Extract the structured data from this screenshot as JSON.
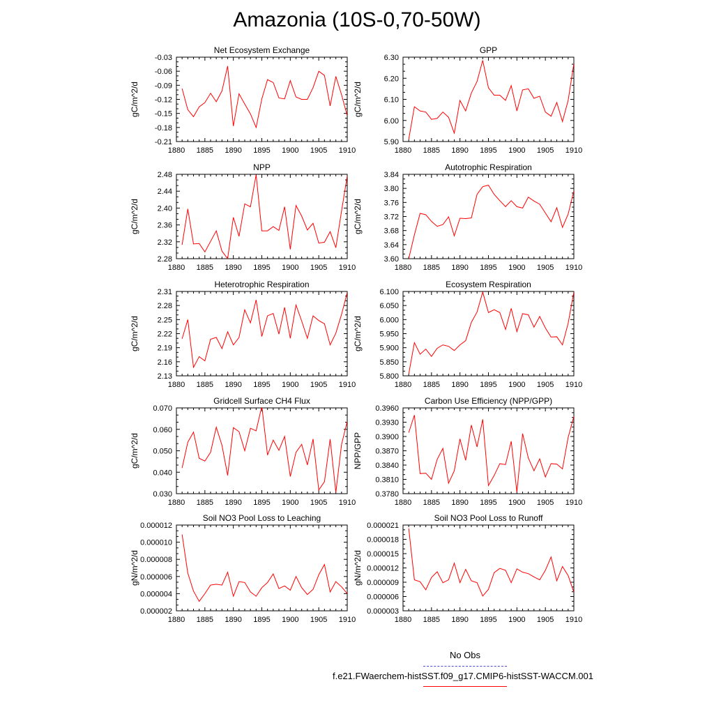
{
  "page": {
    "title": "Amazonia (10S-0,70-50W)"
  },
  "legend": {
    "items": [
      {
        "label": "No Obs",
        "color": "#4a4ad0",
        "style": "dashed"
      },
      {
        "label": "f.e21.FWaerchem-histSST.f09_g17.CMIP6-histSST-WACCM.001",
        "color": "#ff0000",
        "style": "solid"
      }
    ]
  },
  "chart_data": [
    {
      "type": "line",
      "title": "Net Ecosystem Exchange",
      "ylabel": "gC/m^2/d",
      "xlabel": "",
      "xlim": [
        1880,
        1910
      ],
      "xticks": [
        "1880",
        "1885",
        "1890",
        "1895",
        "1900",
        "1905",
        "1910"
      ],
      "ylim": [
        -0.21,
        -0.03
      ],
      "yticks": [
        "-0.21",
        "-0.18",
        "-0.15",
        "-0.12",
        "-0.09",
        "-0.06",
        "-0.03"
      ],
      "grid": false,
      "series": [
        {
          "color": "#ff0000",
          "x": [
            1881,
            1882,
            1883,
            1884,
            1885,
            1886,
            1887,
            1888,
            1889,
            1890,
            1891,
            1892,
            1893,
            1894,
            1895,
            1896,
            1897,
            1898,
            1899,
            1900,
            1901,
            1902,
            1903,
            1904,
            1905,
            1906,
            1907,
            1908,
            1909,
            1910
          ],
          "values": [
            -0.097,
            -0.142,
            -0.157,
            -0.136,
            -0.127,
            -0.107,
            -0.125,
            -0.102,
            -0.049,
            -0.177,
            -0.108,
            -0.13,
            -0.151,
            -0.18,
            -0.119,
            -0.078,
            -0.084,
            -0.117,
            -0.119,
            -0.08,
            -0.115,
            -0.12,
            -0.12,
            -0.095,
            -0.06,
            -0.069,
            -0.134,
            -0.071,
            -0.11,
            -0.155
          ]
        }
      ]
    },
    {
      "type": "line",
      "title": "GPP",
      "ylabel": "gC/m^2/d",
      "xlabel": "",
      "xlim": [
        1880,
        1910
      ],
      "xticks": [
        "1880",
        "1885",
        "1890",
        "1895",
        "1900",
        "1905",
        "1910"
      ],
      "ylim": [
        5.9,
        6.3
      ],
      "yticks": [
        "5.90",
        "6.00",
        "6.10",
        "6.20",
        "6.30"
      ],
      "grid": false,
      "series": [
        {
          "color": "#ff0000",
          "x": [
            1881,
            1882,
            1883,
            1884,
            1885,
            1886,
            1887,
            1888,
            1889,
            1890,
            1891,
            1892,
            1893,
            1894,
            1895,
            1896,
            1897,
            1898,
            1899,
            1900,
            1901,
            1902,
            1903,
            1904,
            1905,
            1906,
            1907,
            1908,
            1909,
            1910
          ],
          "values": [
            5.91,
            6.065,
            6.045,
            6.04,
            6.005,
            6.01,
            6.04,
            6.015,
            5.94,
            6.095,
            6.045,
            6.13,
            6.185,
            6.285,
            6.155,
            6.12,
            6.12,
            6.095,
            6.165,
            6.045,
            6.145,
            6.15,
            6.105,
            6.115,
            6.04,
            6.02,
            6.085,
            5.995,
            6.095,
            6.27
          ]
        }
      ]
    },
    {
      "type": "line",
      "title": "NPP",
      "ylabel": "gC/m^2/d",
      "xlabel": "",
      "xlim": [
        1880,
        1910
      ],
      "xticks": [
        "1880",
        "1885",
        "1890",
        "1895",
        "1900",
        "1905",
        "1910"
      ],
      "ylim": [
        2.28,
        2.48
      ],
      "yticks": [
        "2.28",
        "2.32",
        "2.36",
        "2.40",
        "2.44",
        "2.48"
      ],
      "grid": false,
      "series": [
        {
          "color": "#ff0000",
          "x": [
            1881,
            1882,
            1883,
            1884,
            1885,
            1886,
            1887,
            1888,
            1889,
            1890,
            1891,
            1892,
            1893,
            1894,
            1895,
            1896,
            1897,
            1898,
            1899,
            1900,
            1901,
            1902,
            1903,
            1904,
            1905,
            1906,
            1907,
            1908,
            1909,
            1910
          ],
          "values": [
            2.313,
            2.398,
            2.315,
            2.316,
            2.296,
            2.321,
            2.346,
            2.298,
            2.28,
            2.378,
            2.333,
            2.41,
            2.403,
            2.479,
            2.346,
            2.346,
            2.356,
            2.347,
            2.403,
            2.302,
            2.406,
            2.381,
            2.348,
            2.364,
            2.317,
            2.319,
            2.344,
            2.306,
            2.393,
            2.476
          ]
        }
      ]
    },
    {
      "type": "line",
      "title": "Autotrophic Respiration",
      "ylabel": "gC/m^2/d",
      "xlabel": "",
      "xlim": [
        1880,
        1910
      ],
      "xticks": [
        "1880",
        "1885",
        "1890",
        "1895",
        "1900",
        "1905",
        "1910"
      ],
      "ylim": [
        3.6,
        3.84
      ],
      "yticks": [
        "3.60",
        "3.64",
        "3.68",
        "3.72",
        "3.76",
        "3.80",
        "3.84"
      ],
      "grid": false,
      "series": [
        {
          "color": "#ff0000",
          "x": [
            1881,
            1882,
            1883,
            1884,
            1885,
            1886,
            1887,
            1888,
            1889,
            1890,
            1891,
            1892,
            1893,
            1894,
            1895,
            1896,
            1897,
            1898,
            1899,
            1900,
            1901,
            1902,
            1903,
            1904,
            1905,
            1906,
            1907,
            1908,
            1909,
            1910
          ],
          "values": [
            3.6,
            3.668,
            3.729,
            3.725,
            3.706,
            3.692,
            3.697,
            3.719,
            3.665,
            3.715,
            3.714,
            3.716,
            3.783,
            3.805,
            3.809,
            3.783,
            3.765,
            3.748,
            3.765,
            3.748,
            3.744,
            3.775,
            3.764,
            3.755,
            3.73,
            3.705,
            3.745,
            3.689,
            3.727,
            3.793
          ]
        }
      ]
    },
    {
      "type": "line",
      "title": "Heterotrophic Respiration",
      "ylabel": "gC/m^2/d",
      "xlabel": "",
      "xlim": [
        1880,
        1910
      ],
      "xticks": [
        "1880",
        "1885",
        "1890",
        "1895",
        "1900",
        "1905",
        "1910"
      ],
      "ylim": [
        2.13,
        2.31
      ],
      "yticks": [
        "2.13",
        "2.16",
        "2.19",
        "2.22",
        "2.25",
        "2.28",
        "2.31"
      ],
      "grid": false,
      "series": [
        {
          "color": "#ff0000",
          "x": [
            1881,
            1882,
            1883,
            1884,
            1885,
            1886,
            1887,
            1888,
            1889,
            1890,
            1891,
            1892,
            1893,
            1894,
            1895,
            1896,
            1897,
            1898,
            1899,
            1900,
            1901,
            1902,
            1903,
            1904,
            1905,
            1906,
            1907,
            1908,
            1909,
            1910
          ],
          "values": [
            2.209,
            2.25,
            2.148,
            2.171,
            2.162,
            2.208,
            2.212,
            2.188,
            2.224,
            2.196,
            2.212,
            2.271,
            2.243,
            2.292,
            2.214,
            2.258,
            2.263,
            2.219,
            2.276,
            2.21,
            2.281,
            2.247,
            2.21,
            2.258,
            2.248,
            2.241,
            2.196,
            2.221,
            2.261,
            2.308
          ]
        }
      ]
    },
    {
      "type": "line",
      "title": "Ecosystem Respiration",
      "ylabel": "gC/m^2/d",
      "xlabel": "",
      "xlim": [
        1880,
        1910
      ],
      "xticks": [
        "1880",
        "1885",
        "1890",
        "1895",
        "1900",
        "1905",
        "1910"
      ],
      "ylim": [
        5.8,
        6.1
      ],
      "yticks": [
        "5.800",
        "5.850",
        "5.900",
        "5.950",
        "6.000",
        "6.050",
        "6.100"
      ],
      "grid": false,
      "series": [
        {
          "color": "#ff0000",
          "x": [
            1881,
            1882,
            1883,
            1884,
            1885,
            1886,
            1887,
            1888,
            1889,
            1890,
            1891,
            1892,
            1893,
            1894,
            1895,
            1896,
            1897,
            1898,
            1899,
            1900,
            1901,
            1902,
            1903,
            1904,
            1905,
            1906,
            1907,
            1908,
            1909,
            1910
          ],
          "values": [
            5.806,
            5.918,
            5.877,
            5.895,
            5.869,
            5.898,
            5.91,
            5.905,
            5.89,
            5.91,
            5.925,
            5.99,
            6.027,
            6.098,
            6.025,
            6.035,
            6.025,
            5.965,
            6.04,
            5.957,
            6.021,
            6.017,
            5.973,
            6.011,
            5.97,
            5.938,
            5.939,
            5.91,
            5.987,
            6.098
          ]
        }
      ]
    },
    {
      "type": "line",
      "title": "Gridcell Surface CH4 Flux",
      "ylabel": "gC/m^2/d",
      "xlabel": "",
      "xlim": [
        1880,
        1910
      ],
      "xticks": [
        "1880",
        "1885",
        "1890",
        "1895",
        "1900",
        "1905",
        "1910"
      ],
      "ylim": [
        0.03,
        0.07
      ],
      "yticks": [
        "0.030",
        "0.040",
        "0.050",
        "0.060",
        "0.070"
      ],
      "grid": false,
      "series": [
        {
          "color": "#ff0000",
          "x": [
            1881,
            1882,
            1883,
            1884,
            1885,
            1886,
            1887,
            1888,
            1889,
            1890,
            1891,
            1892,
            1893,
            1894,
            1895,
            1896,
            1897,
            1898,
            1899,
            1900,
            1901,
            1902,
            1903,
            1904,
            1905,
            1906,
            1907,
            1908,
            1909,
            1910
          ],
          "values": [
            0.042,
            0.054,
            0.0587,
            0.0465,
            0.0452,
            0.0493,
            0.061,
            0.0526,
            0.0385,
            0.0608,
            0.0589,
            0.05,
            0.0605,
            0.0593,
            0.0708,
            0.048,
            0.055,
            0.0502,
            0.0567,
            0.038,
            0.0493,
            0.053,
            0.0434,
            0.0555,
            0.0317,
            0.0356,
            0.0554,
            0.0306,
            0.0529,
            0.0638
          ]
        }
      ]
    },
    {
      "type": "line",
      "title": "Carbon Use Efficiency (NPP/GPP)",
      "ylabel": "NPP/GPP",
      "xlabel": "",
      "xlim": [
        1880,
        1910
      ],
      "xticks": [
        "1880",
        "1885",
        "1890",
        "1895",
        "1900",
        "1905",
        "1910"
      ],
      "ylim": [
        0.378,
        0.396
      ],
      "yticks": [
        "0.3780",
        "0.3810",
        "0.3840",
        "0.3870",
        "0.3900",
        "0.3930",
        "0.3960"
      ],
      "grid": false,
      "series": [
        {
          "color": "#ff0000",
          "x": [
            1881,
            1882,
            1883,
            1884,
            1885,
            1886,
            1887,
            1888,
            1889,
            1890,
            1891,
            1892,
            1893,
            1894,
            1895,
            1896,
            1897,
            1898,
            1899,
            1900,
            1901,
            1902,
            1903,
            1904,
            1905,
            1906,
            1907,
            1908,
            1909,
            1910
          ],
          "values": [
            0.3908,
            0.3945,
            0.3822,
            0.3823,
            0.381,
            0.3852,
            0.3875,
            0.3802,
            0.3828,
            0.3895,
            0.385,
            0.3924,
            0.3878,
            0.3936,
            0.3797,
            0.3818,
            0.3843,
            0.3841,
            0.389,
            0.3783,
            0.3906,
            0.3855,
            0.3828,
            0.3853,
            0.3815,
            0.3843,
            0.3842,
            0.3832,
            0.3898,
            0.3942
          ]
        }
      ]
    },
    {
      "type": "line",
      "title": "Soil NO3 Pool Loss to Leaching",
      "ylabel": "gN/m^2/d",
      "xlabel": "",
      "xlim": [
        1880,
        1910
      ],
      "xticks": [
        "1880",
        "1885",
        "1890",
        "1895",
        "1900",
        "1905",
        "1910"
      ],
      "ylim": [
        2e-06,
        1.2e-05
      ],
      "yticks": [
        "0.000002",
        "0.000004",
        "0.000006",
        "0.000008",
        "0.000010",
        "0.000012"
      ],
      "grid": false,
      "series": [
        {
          "color": "#ff0000",
          "x": [
            1881,
            1882,
            1883,
            1884,
            1885,
            1886,
            1887,
            1888,
            1889,
            1890,
            1891,
            1892,
            1893,
            1894,
            1895,
            1896,
            1897,
            1898,
            1899,
            1900,
            1901,
            1902,
            1903,
            1904,
            1905,
            1906,
            1907,
            1908,
            1909,
            1910
          ],
          "values": [
            1.09e-05,
            6.4e-06,
            4.3e-06,
            3.1e-06,
            4e-06,
            5e-06,
            5.1e-06,
            5e-06,
            6.5e-06,
            3.7e-06,
            5.4e-06,
            5.3e-06,
            4.2e-06,
            3.7e-06,
            4.7e-06,
            5.3e-06,
            6.3e-06,
            4.6e-06,
            4.9e-06,
            4.4e-06,
            6e-06,
            4.7e-06,
            3.9e-06,
            4.5e-06,
            6.2e-06,
            7.4e-06,
            4.2e-06,
            5.4e-06,
            4.8e-06,
            4e-06
          ]
        }
      ]
    },
    {
      "type": "line",
      "title": "Soil NO3 Pool Loss to Runoff",
      "ylabel": "gN/m^2/d",
      "xlabel": "",
      "xlim": [
        1880,
        1910
      ],
      "xticks": [
        "1880",
        "1885",
        "1890",
        "1895",
        "1900",
        "1905",
        "1910"
      ],
      "ylim": [
        3e-06,
        2.1e-05
      ],
      "yticks": [
        "0.000003",
        "0.000006",
        "0.000009",
        "0.000012",
        "0.000015",
        "0.000018",
        "0.000021"
      ],
      "grid": false,
      "series": [
        {
          "color": "#ff0000",
          "x": [
            1881,
            1882,
            1883,
            1884,
            1885,
            1886,
            1887,
            1888,
            1889,
            1890,
            1891,
            1892,
            1893,
            1894,
            1895,
            1896,
            1897,
            1898,
            1899,
            1900,
            1901,
            1902,
            1903,
            1904,
            1905,
            1906,
            1907,
            1908,
            1909,
            1910
          ],
          "values": [
            2.03e-05,
            9.5e-06,
            9.1e-06,
            7.4e-06,
            1e-05,
            1.12e-05,
            8.9e-06,
            9.5e-06,
            1.3e-05,
            8.9e-06,
            1.17e-05,
            9.3e-06,
            8.9e-06,
            6.1e-06,
            7.5e-06,
            1.1e-05,
            1.19e-05,
            1.15e-05,
            8.9e-06,
            1.18e-05,
            1.11e-05,
            1.08e-05,
            1.01e-05,
            9.5e-06,
            1.15e-05,
            1.43e-05,
            9.3e-06,
            1.23e-05,
            1.04e-05,
            6.9e-06
          ]
        }
      ]
    }
  ]
}
